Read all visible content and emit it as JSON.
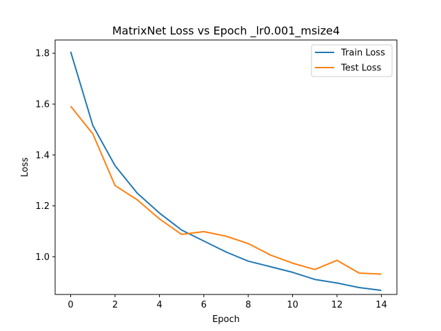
{
  "chart_data": {
    "type": "line",
    "title": "MatrixNet Loss vs Epoch _lr0.001_msize4",
    "xlabel": "Epoch",
    "ylabel": "Loss",
    "x": [
      0,
      1,
      2,
      3,
      4,
      5,
      6,
      7,
      8,
      9,
      10,
      11,
      12,
      13,
      14
    ],
    "xticks": [
      0,
      2,
      4,
      6,
      8,
      10,
      12,
      14
    ],
    "yticks": [
      1.0,
      1.2,
      1.4,
      1.6,
      1.8
    ],
    "xlim": [
      -0.7,
      14.7
    ],
    "ylim": [
      0.852,
      1.852
    ],
    "grid": false,
    "legend_position": "top-right",
    "series": [
      {
        "name": "Train Loss",
        "color": "#1f77b4",
        "values": [
          1.806,
          1.516,
          1.358,
          1.25,
          1.172,
          1.105,
          1.062,
          1.019,
          0.983,
          0.961,
          0.939,
          0.911,
          0.897,
          0.879,
          0.868
        ]
      },
      {
        "name": "Test Loss",
        "color": "#ff7f0e",
        "values": [
          1.592,
          1.483,
          1.28,
          1.224,
          1.149,
          1.088,
          1.099,
          1.081,
          1.052,
          1.007,
          0.975,
          0.95,
          0.986,
          0.936,
          0.932
        ]
      }
    ]
  }
}
